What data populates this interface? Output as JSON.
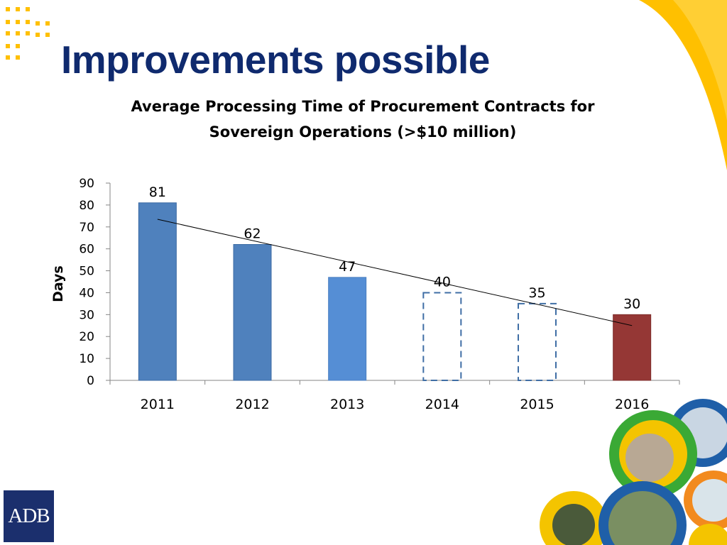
{
  "slide": {
    "title": "Improvements possible",
    "logo_text": "ADB"
  },
  "colors": {
    "title": "#0f2a6e",
    "bar_dark_blue": "#4f81bd",
    "bar_light_blue": "#558ed5",
    "bar_dashed": "#3f6ea5",
    "bar_red": "#953735",
    "decoration_yellow": "#ffc000"
  },
  "chart_data": {
    "type": "bar",
    "title_line1": "Average  Processing Time of Procurement Contracts for",
    "title_line2": "Sovereign Operations (>$10 million)",
    "xlabel": "",
    "ylabel": "Days",
    "ylim": [
      0,
      90
    ],
    "yticks": [
      0,
      10,
      20,
      30,
      40,
      50,
      60,
      70,
      80,
      90
    ],
    "grid": false,
    "legend": "none",
    "categories": [
      "2011",
      "2012",
      "2013",
      "2014",
      "2015",
      "2016"
    ],
    "values": [
      81,
      62,
      47,
      40,
      35,
      30
    ],
    "bar_styles": [
      "solid-dark-blue",
      "solid-dark-blue",
      "solid-light-blue",
      "dashed-outline",
      "dashed-outline",
      "solid-red"
    ],
    "data_labels": [
      "81",
      "62",
      "47",
      "40",
      "35",
      "30"
    ],
    "trendline": {
      "type": "linear",
      "from_category": "2011",
      "to_category": "2016",
      "start_value": 73.5,
      "end_value": 25
    }
  }
}
